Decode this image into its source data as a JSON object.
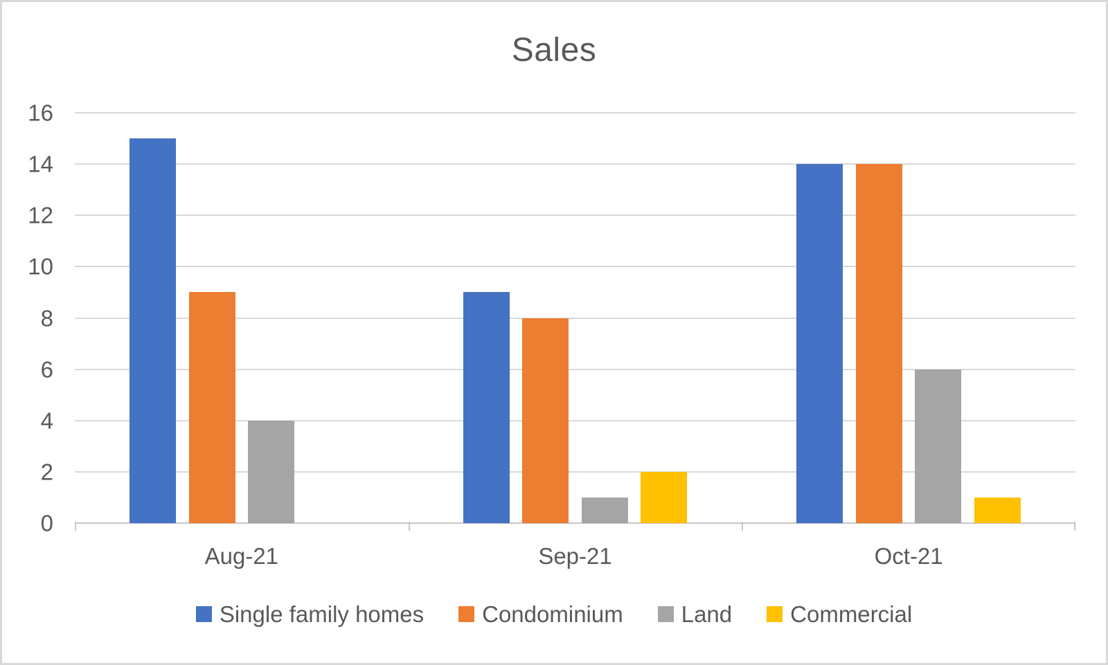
{
  "chart_data": {
    "type": "bar",
    "title": "Sales",
    "categories": [
      "Aug-21",
      "Sep-21",
      "Oct-21"
    ],
    "series": [
      {
        "name": "Single family homes",
        "color": "#4472C4",
        "values": [
          15,
          9,
          14
        ]
      },
      {
        "name": "Condominium",
        "color": "#ED7D31",
        "values": [
          9,
          8,
          14
        ]
      },
      {
        "name": "Land",
        "color": "#A5A5A5",
        "values": [
          4,
          1,
          6
        ]
      },
      {
        "name": "Commercial",
        "color": "#FFC000",
        "values": [
          0,
          2,
          1
        ]
      }
    ],
    "ylim": [
      0,
      16
    ],
    "yticks": [
      0,
      2,
      4,
      6,
      8,
      10,
      12,
      14,
      16
    ],
    "xlabel": "",
    "ylabel": "",
    "grid": true,
    "legend_position": "bottom"
  },
  "colors": {
    "text": "#595959",
    "gridline": "#D9D9D9",
    "axis": "#C6C6C6",
    "page_border": "#D9D9D9",
    "background": "#FFFFFF"
  }
}
